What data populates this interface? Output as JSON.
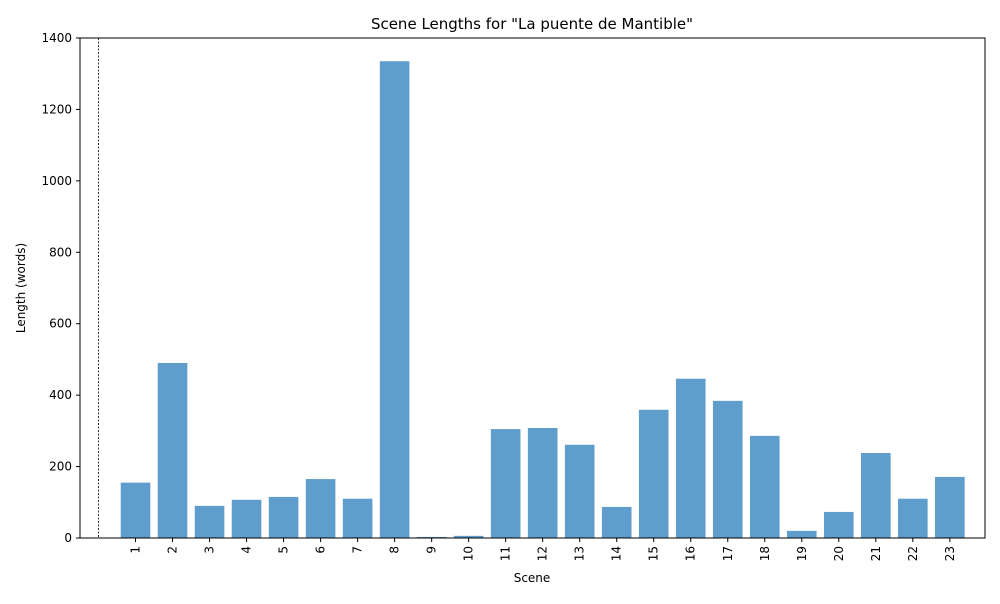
{
  "chart_data": {
    "type": "bar",
    "title": "Scene Lengths for \"La puente de Mantible\"",
    "xlabel": "Scene",
    "ylabel": "Length (words)",
    "categories": [
      "1",
      "2",
      "3",
      "4",
      "5",
      "6",
      "7",
      "8",
      "9",
      "10",
      "11",
      "12",
      "13",
      "14",
      "15",
      "16",
      "17",
      "18",
      "19",
      "20",
      "21",
      "22",
      "23"
    ],
    "values": [
      155,
      490,
      90,
      107,
      115,
      165,
      110,
      1335,
      3,
      6,
      305,
      308,
      261,
      87,
      359,
      446,
      384,
      286,
      20,
      73,
      238,
      110,
      171
    ],
    "ylim": [
      0,
      1400
    ],
    "yticks": [
      0,
      200,
      400,
      600,
      800,
      1000,
      1200,
      1400
    ],
    "bar_color": "#5f9ecc",
    "grid": false,
    "legend": false,
    "reference_line": {
      "x_position": "before scene 1",
      "style": "dashed"
    }
  }
}
